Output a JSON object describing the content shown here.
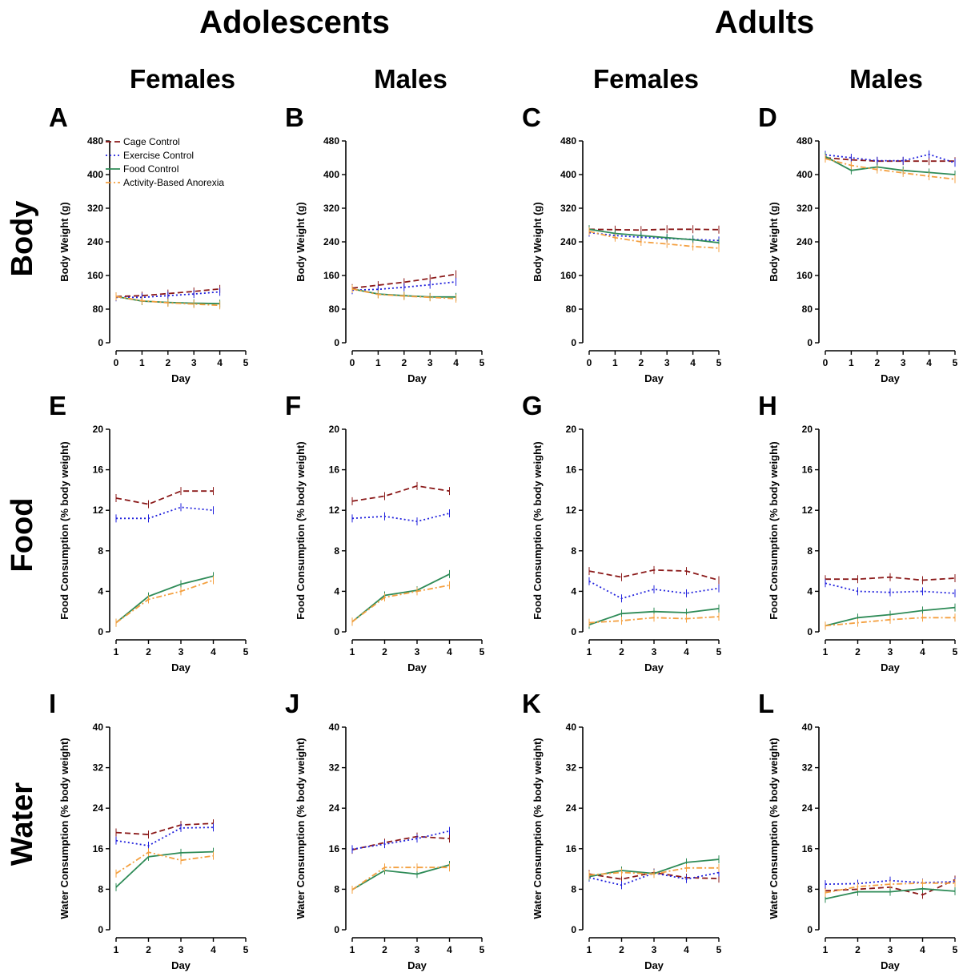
{
  "groups": [
    {
      "label": "Adolescents"
    },
    {
      "label": "Adults"
    }
  ],
  "columns": [
    {
      "label": "Females"
    },
    {
      "label": "Males"
    },
    {
      "label": "Females"
    },
    {
      "label": "Males"
    }
  ],
  "rows": [
    {
      "label": "Body"
    },
    {
      "label": "Food"
    },
    {
      "label": "Water"
    }
  ],
  "legend": {
    "placement": "top-left of panel A",
    "entries": [
      {
        "name": "Cage Control",
        "color": "#8b1a1a",
        "dash": "dashed"
      },
      {
        "name": "Exercise Control",
        "color": "#2222dd",
        "dash": "dotted"
      },
      {
        "name": "Food Control",
        "color": "#2e8b57",
        "dash": "solid"
      },
      {
        "name": "Activity-Based Anorexia",
        "color": "#f4a040",
        "dash": "dash-dot"
      }
    ]
  },
  "chart_data": [
    {
      "panel": "A",
      "type": "line",
      "xlabel": "Day",
      "ylabel": "Body Weight (g)",
      "xlim": [
        0,
        5
      ],
      "xticks": [
        0,
        1,
        2,
        3,
        4,
        5
      ],
      "ylim": [
        0,
        480
      ],
      "yticks": [
        0,
        80,
        160,
        240,
        320,
        400,
        480
      ],
      "x": [
        0,
        1,
        2,
        3,
        4
      ],
      "series": [
        {
          "name": "Cage Control",
          "values": [
            110,
            112,
            117,
            122,
            128
          ]
        },
        {
          "name": "Exercise Control",
          "values": [
            108,
            108,
            112,
            116,
            121
          ]
        },
        {
          "name": "Food Control",
          "values": [
            110,
            99,
            96,
            94,
            93
          ]
        },
        {
          "name": "Activity-Based Anorexia",
          "values": [
            110,
            100,
            95,
            92,
            89
          ]
        }
      ]
    },
    {
      "panel": "B",
      "type": "line",
      "xlabel": "Day",
      "ylabel": "Body Weight (g)",
      "xlim": [
        0,
        5
      ],
      "xticks": [
        0,
        1,
        2,
        3,
        4,
        5
      ],
      "ylim": [
        0,
        480
      ],
      "yticks": [
        0,
        80,
        160,
        240,
        320,
        400,
        480
      ],
      "x": [
        0,
        1,
        2,
        3,
        4
      ],
      "series": [
        {
          "name": "Cage Control",
          "values": [
            130,
            137,
            144,
            153,
            163
          ]
        },
        {
          "name": "Exercise Control",
          "values": [
            125,
            127,
            132,
            138,
            145
          ]
        },
        {
          "name": "Food Control",
          "values": [
            128,
            116,
            112,
            109,
            109
          ]
        },
        {
          "name": "Activity-Based Anorexia",
          "values": [
            128,
            115,
            111,
            108,
            105
          ]
        }
      ]
    },
    {
      "panel": "C",
      "type": "line",
      "xlabel": "Day",
      "ylabel": "Body Weight (g)",
      "xlim": [
        0,
        5
      ],
      "xticks": [
        0,
        1,
        2,
        3,
        4,
        5
      ],
      "ylim": [
        0,
        480
      ],
      "yticks": [
        0,
        80,
        160,
        240,
        320,
        400,
        480
      ],
      "x": [
        0,
        1,
        2,
        3,
        4,
        5
      ],
      "series": [
        {
          "name": "Cage Control",
          "values": [
            270,
            269,
            268,
            270,
            270,
            269
          ]
        },
        {
          "name": "Exercise Control",
          "values": [
            262,
            255,
            251,
            248,
            246,
            243
          ]
        },
        {
          "name": "Food Control",
          "values": [
            270,
            260,
            255,
            250,
            245,
            238
          ]
        },
        {
          "name": "Activity-Based Anorexia",
          "values": [
            265,
            250,
            240,
            235,
            229,
            225
          ]
        }
      ]
    },
    {
      "panel": "D",
      "type": "line",
      "xlabel": "Day",
      "ylabel": "Body Weight (g)",
      "xlim": [
        0,
        5
      ],
      "xticks": [
        0,
        1,
        2,
        3,
        4,
        5
      ],
      "ylim": [
        0,
        480
      ],
      "yticks": [
        0,
        80,
        160,
        240,
        320,
        400,
        480
      ],
      "x": [
        0,
        1,
        2,
        3,
        4,
        5
      ],
      "series": [
        {
          "name": "Cage Control",
          "values": [
            440,
            435,
            432,
            432,
            432,
            432
          ]
        },
        {
          "name": "Exercise Control",
          "values": [
            447,
            440,
            433,
            433,
            448,
            428
          ]
        },
        {
          "name": "Food Control",
          "values": [
            443,
            410,
            418,
            410,
            405,
            400
          ]
        },
        {
          "name": "Activity-Based Anorexia",
          "values": [
            438,
            422,
            412,
            404,
            396,
            389
          ]
        }
      ]
    },
    {
      "panel": "E",
      "type": "line",
      "xlabel": "Day",
      "ylabel": "Food Consumption (% body weight)",
      "xlim": [
        1,
        5
      ],
      "xticks": [
        1,
        2,
        3,
        4,
        5
      ],
      "ylim": [
        0,
        20
      ],
      "yticks": [
        0,
        4,
        8,
        12,
        16,
        20
      ],
      "x": [
        1,
        2,
        3,
        4
      ],
      "series": [
        {
          "name": "Cage Control",
          "values": [
            13.2,
            12.6,
            13.9,
            13.9
          ]
        },
        {
          "name": "Exercise Control",
          "values": [
            11.2,
            11.2,
            12.3,
            12.0
          ]
        },
        {
          "name": "Food Control",
          "values": [
            0.9,
            3.5,
            4.7,
            5.5
          ]
        },
        {
          "name": "Activity-Based Anorexia",
          "values": [
            0.9,
            3.2,
            4.0,
            5.1
          ]
        }
      ]
    },
    {
      "panel": "F",
      "type": "line",
      "xlabel": "Day",
      "ylabel": "Food Consumption (% body weight)",
      "xlim": [
        1,
        5
      ],
      "xticks": [
        1,
        2,
        3,
        4,
        5
      ],
      "ylim": [
        0,
        20
      ],
      "yticks": [
        0,
        4,
        8,
        12,
        16,
        20
      ],
      "x": [
        1,
        2,
        3,
        4
      ],
      "series": [
        {
          "name": "Cage Control",
          "values": [
            12.9,
            13.4,
            14.4,
            13.9
          ]
        },
        {
          "name": "Exercise Control",
          "values": [
            11.2,
            11.4,
            10.9,
            11.7
          ]
        },
        {
          "name": "Food Control",
          "values": [
            1.0,
            3.6,
            4.1,
            5.7
          ]
        },
        {
          "name": "Activity-Based Anorexia",
          "values": [
            1.0,
            3.4,
            4.0,
            4.6
          ]
        }
      ]
    },
    {
      "panel": "G",
      "type": "line",
      "xlabel": "Day",
      "ylabel": "Food Consumption (% body weight)",
      "xlim": [
        1,
        5
      ],
      "xticks": [
        1,
        2,
        3,
        4,
        5
      ],
      "ylim": [
        0,
        20
      ],
      "yticks": [
        0,
        4,
        8,
        12,
        16,
        20
      ],
      "x": [
        1,
        2,
        3,
        4,
        5
      ],
      "series": [
        {
          "name": "Cage Control",
          "values": [
            6.0,
            5.4,
            6.1,
            6.0,
            5.1
          ]
        },
        {
          "name": "Exercise Control",
          "values": [
            5.0,
            3.3,
            4.2,
            3.8,
            4.3
          ]
        },
        {
          "name": "Food Control",
          "values": [
            0.7,
            1.8,
            2.0,
            1.9,
            2.3
          ]
        },
        {
          "name": "Activity-Based Anorexia",
          "values": [
            0.9,
            1.1,
            1.4,
            1.3,
            1.5
          ]
        }
      ]
    },
    {
      "panel": "H",
      "type": "line",
      "xlabel": "Day",
      "ylabel": "Food Consumption (% body weight)",
      "xlim": [
        1,
        5
      ],
      "xticks": [
        1,
        2,
        3,
        4,
        5
      ],
      "ylim": [
        0,
        20
      ],
      "yticks": [
        0,
        4,
        8,
        12,
        16,
        20
      ],
      "x": [
        1,
        2,
        3,
        4,
        5
      ],
      "series": [
        {
          "name": "Cage Control",
          "values": [
            5.2,
            5.2,
            5.4,
            5.1,
            5.3
          ]
        },
        {
          "name": "Exercise Control",
          "values": [
            4.8,
            4.0,
            3.9,
            4.0,
            3.8
          ]
        },
        {
          "name": "Food Control",
          "values": [
            0.6,
            1.4,
            1.7,
            2.1,
            2.4
          ]
        },
        {
          "name": "Activity-Based Anorexia",
          "values": [
            0.6,
            0.9,
            1.2,
            1.4,
            1.4
          ]
        }
      ]
    },
    {
      "panel": "I",
      "type": "line",
      "xlabel": "Day",
      "ylabel": "Water Consumption (% body weight)",
      "xlim": [
        1,
        5
      ],
      "xticks": [
        1,
        2,
        3,
        4,
        5
      ],
      "ylim": [
        0,
        40
      ],
      "yticks": [
        0,
        8,
        16,
        24,
        32,
        40
      ],
      "x": [
        1,
        2,
        3,
        4
      ],
      "series": [
        {
          "name": "Cage Control",
          "values": [
            19.2,
            18.8,
            20.7,
            21.0
          ]
        },
        {
          "name": "Exercise Control",
          "values": [
            17.6,
            16.6,
            20.1,
            20.2
          ]
        },
        {
          "name": "Food Control",
          "values": [
            8.4,
            14.4,
            15.2,
            15.4
          ]
        },
        {
          "name": "Activity-Based Anorexia",
          "values": [
            11.1,
            15.3,
            13.7,
            14.6
          ]
        }
      ]
    },
    {
      "panel": "J",
      "type": "line",
      "xlabel": "Day",
      "ylabel": "Water Consumption (% body weight)",
      "xlim": [
        1,
        5
      ],
      "xticks": [
        1,
        2,
        3,
        4,
        5
      ],
      "ylim": [
        0,
        40
      ],
      "yticks": [
        0,
        8,
        16,
        24,
        32,
        40
      ],
      "x": [
        1,
        2,
        3,
        4
      ],
      "series": [
        {
          "name": "Cage Control",
          "values": [
            15.8,
            17.2,
            18.4,
            18.0
          ]
        },
        {
          "name": "Exercise Control",
          "values": [
            15.9,
            16.9,
            18.0,
            19.5
          ]
        },
        {
          "name": "Food Control",
          "values": [
            7.9,
            11.7,
            11.0,
            12.8
          ]
        },
        {
          "name": "Activity-Based Anorexia",
          "values": [
            7.9,
            12.3,
            12.3,
            12.3
          ]
        }
      ]
    },
    {
      "panel": "K",
      "type": "line",
      "xlabel": "Day",
      "ylabel": "Water Consumption (% body weight)",
      "xlim": [
        1,
        5
      ],
      "xticks": [
        1,
        2,
        3,
        4,
        5
      ],
      "ylim": [
        0,
        40
      ],
      "yticks": [
        0,
        8,
        16,
        24,
        32,
        40
      ],
      "x": [
        1,
        2,
        3,
        4,
        5
      ],
      "series": [
        {
          "name": "Cage Control",
          "values": [
            11.0,
            10.0,
            11.3,
            10.3,
            10.1
          ]
        },
        {
          "name": "Exercise Control",
          "values": [
            10.3,
            8.8,
            11.2,
            10.0,
            11.3
          ]
        },
        {
          "name": "Food Control",
          "values": [
            10.5,
            11.7,
            11.1,
            13.3,
            13.9
          ]
        },
        {
          "name": "Activity-Based Anorexia",
          "values": [
            10.8,
            11.3,
            11.0,
            12.2,
            12.2
          ]
        }
      ]
    },
    {
      "panel": "L",
      "type": "line",
      "xlabel": "Day",
      "ylabel": "Water Consumption (% body weight)",
      "xlim": [
        1,
        5
      ],
      "xticks": [
        1,
        2,
        3,
        4,
        5
      ],
      "ylim": [
        0,
        40
      ],
      "yticks": [
        0,
        8,
        16,
        24,
        32,
        40
      ],
      "x": [
        1,
        2,
        3,
        4,
        5
      ],
      "series": [
        {
          "name": "Cage Control",
          "values": [
            7.7,
            8.0,
            8.4,
            6.9,
            9.9
          ]
        },
        {
          "name": "Exercise Control",
          "values": [
            9.0,
            9.1,
            9.7,
            9.3,
            9.5
          ]
        },
        {
          "name": "Food Control",
          "values": [
            6.1,
            7.5,
            7.5,
            8.1,
            7.6
          ]
        },
        {
          "name": "Activity-Based Anorexia",
          "values": [
            7.3,
            8.5,
            9.0,
            9.2,
            9.2
          ]
        }
      ]
    }
  ]
}
